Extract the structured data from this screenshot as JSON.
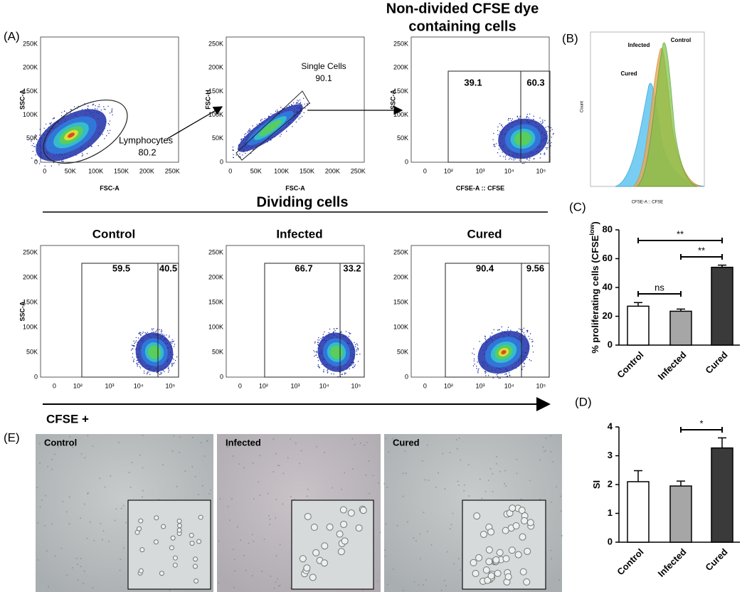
{
  "panel_labels": [
    "(A)",
    "(B)",
    "(C)",
    "(D)",
    "(E)"
  ],
  "gating": {
    "title": [
      "Non-divided CFSE dye",
      "containing cells"
    ],
    "plots": [
      {
        "ylabel": "SSC-A",
        "xlabel": "FSC-A",
        "yticks": [
          "250K",
          "200K",
          "150K",
          "100K",
          "50K",
          "0"
        ],
        "xticks": [
          "0",
          "50K",
          "100K",
          "150K",
          "200K",
          "250K"
        ],
        "gate": "Lymphocytes",
        "gate_values": [
          80.2
        ]
      },
      {
        "ylabel": "FSC-H",
        "xlabel": "FSC-A",
        "yticks": [
          "250K",
          "200K",
          "150K",
          "100K",
          "50K",
          "0"
        ],
        "xticks": [
          "0",
          "50K",
          "100K",
          "150K",
          "200K",
          "250K"
        ],
        "gate": "Single Cells",
        "gate_values": [
          90.1
        ]
      },
      {
        "ylabel": "SSC-A",
        "xlabel": "CFSE-A :: CFSE",
        "yticks": [
          "250K",
          "200K",
          "150K",
          "100K",
          "50K",
          "0"
        ],
        "xticks": [
          "0",
          "10²",
          "10³",
          "10⁴",
          "10⁵"
        ],
        "gate_values": [
          39.1,
          60.3
        ]
      }
    ]
  },
  "dividing": {
    "title": "Dividing cells",
    "ylabel": "SSC-A",
    "yticks": [
      "250K",
      "200K",
      "150K",
      "100K",
      "50K",
      "0"
    ],
    "xticks": [
      "0",
      "10²",
      "10³",
      "10⁴",
      "10⁵"
    ],
    "plots": [
      {
        "title": "Control",
        "gate_values": [
          59.5,
          40.5
        ]
      },
      {
        "title": "Infected",
        "gate_values": [
          66.7,
          33.2
        ]
      },
      {
        "title": "Cured",
        "gate_values": [
          90.4,
          9.56
        ]
      }
    ],
    "axis_label": "CFSE +"
  },
  "histogram": {
    "ylabel": "Count",
    "xlabel": "CFSE-A :: CFSE",
    "series": [
      "Infected",
      "Control",
      "Cured"
    ]
  },
  "chart_data": [
    {
      "type": "bar",
      "ylabel": {
        "main": "% proliferating cells (CFSE",
        "sup": "low",
        "end": ")"
      },
      "categories": [
        "Control",
        "Infected",
        "Cured"
      ],
      "values": [
        27,
        23.5,
        54
      ],
      "errors": [
        2.5,
        1.5,
        1.5
      ],
      "colors": [
        "#ffffff",
        "#a6a6a6",
        "#3a3a3a"
      ],
      "ylim": [
        0,
        80
      ],
      "yticks": [
        0,
        20,
        40,
        60,
        80
      ],
      "annotations": [
        "**",
        "**",
        "ns"
      ]
    },
    {
      "type": "bar",
      "ylabel": {
        "main": "SI"
      },
      "categories": [
        "Control",
        "Infected",
        "Cured"
      ],
      "values": [
        2.1,
        1.95,
        3.27
      ],
      "errors": [
        0.38,
        0.17,
        0.35
      ],
      "colors": [
        "#ffffff",
        "#a6a6a6",
        "#3a3a3a"
      ],
      "ylim": [
        0,
        4
      ],
      "yticks": [
        0,
        1,
        2,
        3,
        4
      ],
      "annotations": [
        "*"
      ]
    }
  ],
  "micrographs": [
    "Control",
    "Infected",
    "Cured"
  ]
}
